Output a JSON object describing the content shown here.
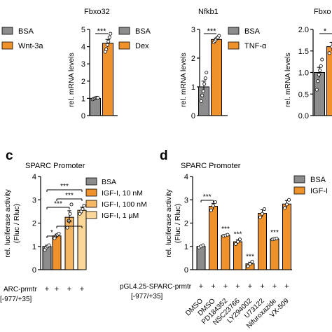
{
  "colors": {
    "bsa": "#8c8c8c",
    "orange": "#f0922c",
    "orange_mid": "#f6b765",
    "orange_light": "#fbd89a",
    "axis": "#000000"
  },
  "common": {
    "ylabel": "rel. mRNA levels",
    "ylabel_lum": "rel. luciferase activity",
    "ylabel_lum2": "(Fluc / Rluc)"
  },
  "top_left_legend": {
    "bsa": "BSA",
    "wnt": "Wnt-3a"
  },
  "fbxo32": {
    "title": "Fbxo32",
    "legend": {
      "bsa": "BSA",
      "dex": "Dex"
    },
    "sig": "***"
  },
  "nfkb1": {
    "title": "Nfkb1",
    "legend": {
      "bsa": "BSA",
      "tnf": "TNF-α"
    },
    "sig": "***"
  },
  "fbxo_r": {
    "title": "Fbxo",
    "sig": "*"
  },
  "panel_c": {
    "letter": "c",
    "title": "SPARC Promoter",
    "xrow_label_1": "ARC-prmtr",
    "xrow_label_2": "[-977/+35]"
  },
  "panel_d": {
    "letter": "d",
    "title": "SPARC Promoter",
    "xrow_label_1": "pGL4.25-SPARC-prmtr",
    "xrow_label_2": "[-977/+35]",
    "legend": {
      "bsa": "BSA",
      "igf": "IGF-I"
    }
  },
  "chart_data": [
    {
      "type": "bar",
      "title": "Fbxo32",
      "ylabel": "rel. mRNA levels",
      "ylim": [
        0,
        5
      ],
      "yticks": [
        "0",
        "1",
        "2",
        "3",
        "4",
        "5"
      ],
      "series": [
        {
          "name": "BSA",
          "color": "#8c8c8c",
          "values": [
            1.0
          ],
          "error": [
            0.04
          ],
          "points": [
            0.94,
            0.97,
            1.0,
            1.02,
            1.04,
            1.03
          ]
        },
        {
          "name": "Dex",
          "color": "#f0922c",
          "values": [
            4.2
          ],
          "error": [
            0.22
          ],
          "points": [
            3.7,
            3.85,
            4.1,
            4.3,
            4.55,
            4.75
          ]
        }
      ],
      "significance": "***"
    },
    {
      "type": "bar",
      "title": "Nfkb1",
      "ylabel": "rel. mRNA levels",
      "ylim": [
        0,
        3
      ],
      "yticks": [
        "0",
        "1",
        "2",
        "3"
      ],
      "series": [
        {
          "name": "BSA",
          "color": "#8c8c8c",
          "values": [
            1.0
          ],
          "error": [
            0.2
          ],
          "points": [
            0.5,
            0.7,
            0.85,
            1.1,
            1.3,
            1.5
          ]
        },
        {
          "name": "TNF-α",
          "color": "#f0922c",
          "values": [
            2.65
          ],
          "error": [
            0.05
          ],
          "points": [
            2.55,
            2.6,
            2.65,
            2.7,
            2.72,
            2.78
          ]
        }
      ],
      "significance": "***"
    },
    {
      "type": "bar",
      "title": "Fbxo",
      "ylabel": "rel. mRNA levels",
      "ylim": [
        0,
        2.0
      ],
      "yticks": [
        "0.0",
        "0.5",
        "1.0",
        "1.5",
        "2.0"
      ],
      "series": [
        {
          "name": "BSA",
          "color": "#8c8c8c",
          "values": [
            1.0
          ],
          "error": [
            0.12
          ],
          "points": [
            0.6,
            0.8,
            0.95,
            1.05,
            1.15,
            1.3
          ]
        },
        {
          "name": "Wnt-3a",
          "color": "#f0922c",
          "values": [
            1.6
          ],
          "error": [
            0.1
          ],
          "points": [
            1.45,
            1.6,
            1.75
          ]
        }
      ],
      "significance": "*"
    },
    {
      "type": "bar",
      "title": "SPARC Promoter",
      "ylabel": "rel. luciferase activity (Fluc / Rluc)",
      "ylim": [
        0,
        4
      ],
      "yticks": [
        "0",
        "1",
        "2",
        "3",
        "4"
      ],
      "categories": [
        "BSA",
        "IGF-I, 10 nM",
        "IGF-I, 100 nM",
        "IGF-I, 1 µM"
      ],
      "values": [
        1.0,
        1.45,
        2.25,
        2.55
      ],
      "errors": [
        0.05,
        0.08,
        0.28,
        0.13
      ],
      "points": [
        [
          0.85,
          0.95,
          1.0,
          1.05
        ],
        [
          1.35,
          1.45,
          1.5,
          1.55
        ],
        [
          1.8,
          2.1,
          2.4,
          2.8
        ],
        [
          2.4,
          2.5,
          2.6,
          2.75
        ]
      ],
      "colors": [
        "#8c8c8c",
        "#f0922c",
        "#f6b765",
        "#fbd89a"
      ],
      "plasmid_row": [
        "+",
        "+",
        "+",
        "+"
      ],
      "comparisons": [
        {
          "from": 0,
          "to": 1,
          "label": "*"
        },
        {
          "from": 1,
          "to": 3,
          "label": "**"
        },
        {
          "from": 0,
          "to": 2,
          "label": "***"
        },
        {
          "from": 1,
          "to": 3,
          "label": "***"
        },
        {
          "from": 0,
          "to": 3,
          "label": "***"
        }
      ]
    },
    {
      "type": "bar",
      "title": "SPARC Promoter",
      "ylabel": "rel. luciferase activity (Fluc / Rluc)",
      "ylim": [
        0,
        4
      ],
      "yticks": [
        "0",
        "1",
        "2",
        "3",
        "4"
      ],
      "categories": [
        "DMSO",
        "DMSO",
        "PD184352",
        "NSC23766",
        "LY294002",
        "U73122",
        "Nifuroxazide",
        "VX-509"
      ],
      "groups": [
        "BSA",
        "IGF-I",
        "IGF-I",
        "IGF-I",
        "IGF-I",
        "IGF-I",
        "IGF-I",
        "IGF-I"
      ],
      "values": [
        1.0,
        2.72,
        1.47,
        1.2,
        0.25,
        2.42,
        1.32,
        2.82
      ],
      "errors": [
        0.03,
        0.13,
        0.03,
        0.08,
        0.07,
        0.15,
        0.03,
        0.15
      ],
      "points": [
        [
          0.95,
          1.0,
          1.05
        ],
        [
          2.55,
          2.75,
          2.9
        ],
        [
          1.45,
          1.47,
          1.5
        ],
        [
          1.1,
          1.2,
          1.3
        ],
        [
          0.15,
          0.25,
          0.35
        ],
        [
          2.25,
          2.4,
          2.6
        ],
        [
          1.3,
          1.32,
          1.34
        ],
        [
          2.65,
          2.8,
          3.0
        ]
      ],
      "colors": [
        "#8c8c8c",
        "#f0922c",
        "#f0922c",
        "#f0922c",
        "#f0922c",
        "#f0922c",
        "#f0922c",
        "#f0922c"
      ],
      "plasmid_row": [
        "+",
        "+",
        "+",
        "+",
        "+",
        "+",
        "+",
        "+"
      ],
      "significance_above": [
        "",
        "",
        "***",
        "***",
        "***",
        "",
        "***",
        ""
      ],
      "bracket": {
        "from": 0,
        "to": 1,
        "label": "***"
      }
    }
  ]
}
